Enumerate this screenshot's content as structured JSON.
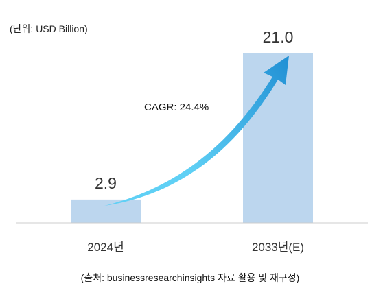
{
  "chart_data": {
    "type": "bar",
    "unit_label": "(단위: USD Billion)",
    "categories": [
      "2024년",
      "2033년(E)"
    ],
    "values": [
      2.9,
      21.0
    ],
    "value_labels": [
      "2.9",
      "21.0"
    ],
    "ylim": [
      0,
      21.0
    ],
    "grid": false,
    "legend": "none",
    "annotation": "CAGR: 24.4%",
    "source": "(출처: businessresearchinsights 자료 활용 및 재구성)"
  },
  "colors": {
    "bar": "#bcd6ee",
    "arrow_light": "#5fd0f5",
    "arrow_dark": "#0a78c8",
    "axis": "#cccccc"
  }
}
